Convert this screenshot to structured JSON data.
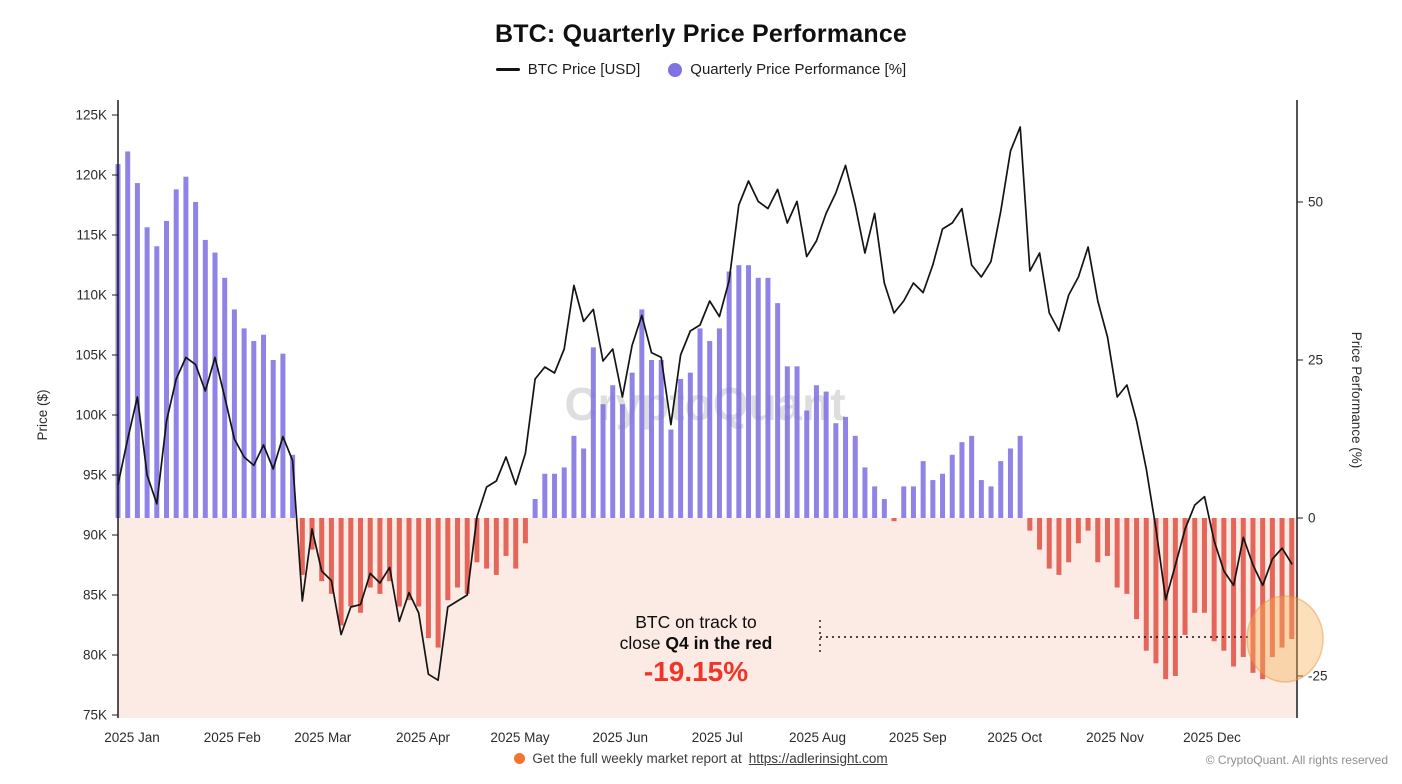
{
  "title": "BTC: Quarterly Price Performance",
  "legend": [
    {
      "label": "BTC Price [USD]",
      "type": "line",
      "color": "#141414"
    },
    {
      "label": "Quarterly Price Performance [%]",
      "type": "dot",
      "color": "#7f72e3"
    }
  ],
  "watermark": "CryptoQuant",
  "annotation": {
    "line1": "BTC on track to",
    "line2_prefix": "close ",
    "line2_bold": "Q4 in the red",
    "value": "-19.15%"
  },
  "footer": {
    "text": "Get the full weekly market report at",
    "link": "https://adlerinsight.com",
    "copyright": "© CryptoQuant. All rights reserved"
  },
  "colors": {
    "price_line": "#141414",
    "perf_positive": "#7f72e3",
    "perf_negative": "#e05348",
    "below_zero_fill": "#fcebe4",
    "highlight_fill": "rgba(244,177,84,0.40)",
    "highlight_stroke": "rgba(228,142,52,0.45)",
    "annotation_value": "#f03528",
    "watermark": "#d4d4d4",
    "axis": "#1c1c1c",
    "tick_text": "#2b2b2b"
  },
  "chart_data": {
    "type": "bar+line combo",
    "title": "BTC: Quarterly Price Performance",
    "x_unit": "day of year 2025",
    "left_axis": {
      "label": "Price ($)",
      "tick_values": [
        125,
        120,
        115,
        110,
        105,
        100,
        95,
        90,
        85,
        80,
        75
      ],
      "tick_labels": [
        "125K",
        "120K",
        "115K",
        "110K",
        "105K",
        "100K",
        "95K",
        "90K",
        "85K",
        "80K",
        "75K"
      ],
      "range_kusd": [
        75,
        125
      ]
    },
    "right_axis": {
      "label": "Price Performance (%)",
      "tick_values": [
        50,
        25,
        0,
        -25
      ],
      "tick_labels": [
        "50",
        "25",
        "0",
        "-25"
      ],
      "range_pct": [
        -31,
        66
      ]
    },
    "x_axis": {
      "tick_labels": [
        "2025 Jan",
        "2025 Feb",
        "2025 Mar",
        "2025 Apr",
        "2025 May",
        "2025 Jun",
        "2025 Jul",
        "2025 Aug",
        "2025 Sep",
        "2025 Oct",
        "2025 Nov",
        "2025 Dec"
      ],
      "tick_days": [
        1,
        32,
        60,
        91,
        121,
        152,
        182,
        213,
        244,
        274,
        305,
        335
      ]
    },
    "days": [
      1,
      4,
      7,
      10,
      13,
      16,
      19,
      22,
      25,
      28,
      31,
      34,
      37,
      40,
      43,
      46,
      49,
      52,
      55,
      58,
      61,
      64,
      67,
      70,
      73,
      76,
      79,
      82,
      85,
      88,
      91,
      94,
      97,
      100,
      103,
      106,
      109,
      112,
      115,
      118,
      121,
      124,
      127,
      130,
      133,
      136,
      139,
      142,
      145,
      148,
      151,
      154,
      157,
      160,
      163,
      166,
      169,
      172,
      175,
      178,
      181,
      184,
      187,
      190,
      193,
      196,
      199,
      202,
      205,
      208,
      211,
      214,
      217,
      220,
      223,
      226,
      229,
      232,
      235,
      238,
      241,
      244,
      247,
      250,
      253,
      256,
      259,
      262,
      265,
      268,
      271,
      274,
      277,
      280,
      283,
      286,
      289,
      292,
      295,
      298,
      301,
      304,
      307,
      310,
      313,
      316,
      319,
      322,
      325,
      328,
      331,
      334,
      337,
      340,
      343,
      346,
      349,
      352,
      355,
      358,
      361,
      364
    ],
    "series": [
      {
        "name": "BTC Price [USD]",
        "type": "line",
        "axis": "left",
        "unit": "K USD",
        "values": [
          94.2,
          98.0,
          101.5,
          95.0,
          92.6,
          99.5,
          103.0,
          104.8,
          104.2,
          102.0,
          104.8,
          101.5,
          98.0,
          96.5,
          95.8,
          97.5,
          95.5,
          98.2,
          96.2,
          84.5,
          90.5,
          87.0,
          86.2,
          81.7,
          84.0,
          84.2,
          86.8,
          86.0,
          87.3,
          82.8,
          85.2,
          83.5,
          78.4,
          77.9,
          84.0,
          84.5,
          85.0,
          91.5,
          94.0,
          94.5,
          96.5,
          94.2,
          96.8,
          103.0,
          104.0,
          103.5,
          105.5,
          110.8,
          107.8,
          108.8,
          104.5,
          105.5,
          101.5,
          105.8,
          108.3,
          105.2,
          104.8,
          99.2,
          105.0,
          107.0,
          107.5,
          109.5,
          108.2,
          111.2,
          117.5,
          119.5,
          117.8,
          117.2,
          118.8,
          116.0,
          117.8,
          113.2,
          114.5,
          116.8,
          118.5,
          120.8,
          117.5,
          113.5,
          116.8,
          111.0,
          108.5,
          109.5,
          111.0,
          110.2,
          112.5,
          115.5,
          116.0,
          117.2,
          112.5,
          111.5,
          112.8,
          117.0,
          122.0,
          124.0,
          112.0,
          113.5,
          108.5,
          107.0,
          110.0,
          111.5,
          114.0,
          109.5,
          106.5,
          101.5,
          102.5,
          99.5,
          95.5,
          90.5,
          84.6,
          87.5,
          90.5,
          92.5,
          93.2,
          89.5,
          87.0,
          85.8,
          89.8,
          87.5,
          85.8,
          88.0,
          88.9,
          87.6
        ]
      },
      {
        "name": "Quarterly Price Performance [%]",
        "type": "bar",
        "axis": "right",
        "unit": "%",
        "values": [
          56,
          58,
          53,
          46,
          43,
          47,
          52,
          54,
          50,
          44,
          42,
          38,
          33,
          30,
          28,
          29,
          25,
          26,
          10,
          -9,
          -5,
          -10,
          -12,
          -17,
          -14,
          -15,
          -11,
          -12,
          -10,
          -14,
          -13,
          -14,
          -19,
          -20.5,
          -13,
          -11,
          -12,
          -7,
          -8,
          -9,
          -6,
          -8,
          -4,
          3,
          7,
          7,
          8,
          13,
          11,
          27,
          18,
          21,
          18,
          23,
          33,
          25,
          25,
          14,
          22,
          23,
          30,
          28,
          30,
          39,
          40,
          40,
          38,
          38,
          34,
          24,
          24,
          17,
          21,
          20,
          15,
          16,
          13,
          8,
          5,
          3,
          -0.5,
          5,
          5,
          9,
          6,
          7,
          10,
          12,
          13,
          6,
          5,
          9,
          11,
          13,
          -2,
          -5,
          -8,
          -9,
          -7,
          -4,
          -2,
          -7,
          -6,
          -11,
          -12,
          -16,
          -21,
          -23,
          -25.5,
          -25,
          -18.5,
          -15,
          -15,
          -19.5,
          -21,
          -23.5,
          -22,
          -24.5,
          -25.5,
          -22,
          -20.5,
          -19.15
        ]
      }
    ],
    "annotation": {
      "text": "BTC on track to close Q4 in the red",
      "value_pct": -19.15
    },
    "grid": "off",
    "legend_position": "top-center"
  }
}
